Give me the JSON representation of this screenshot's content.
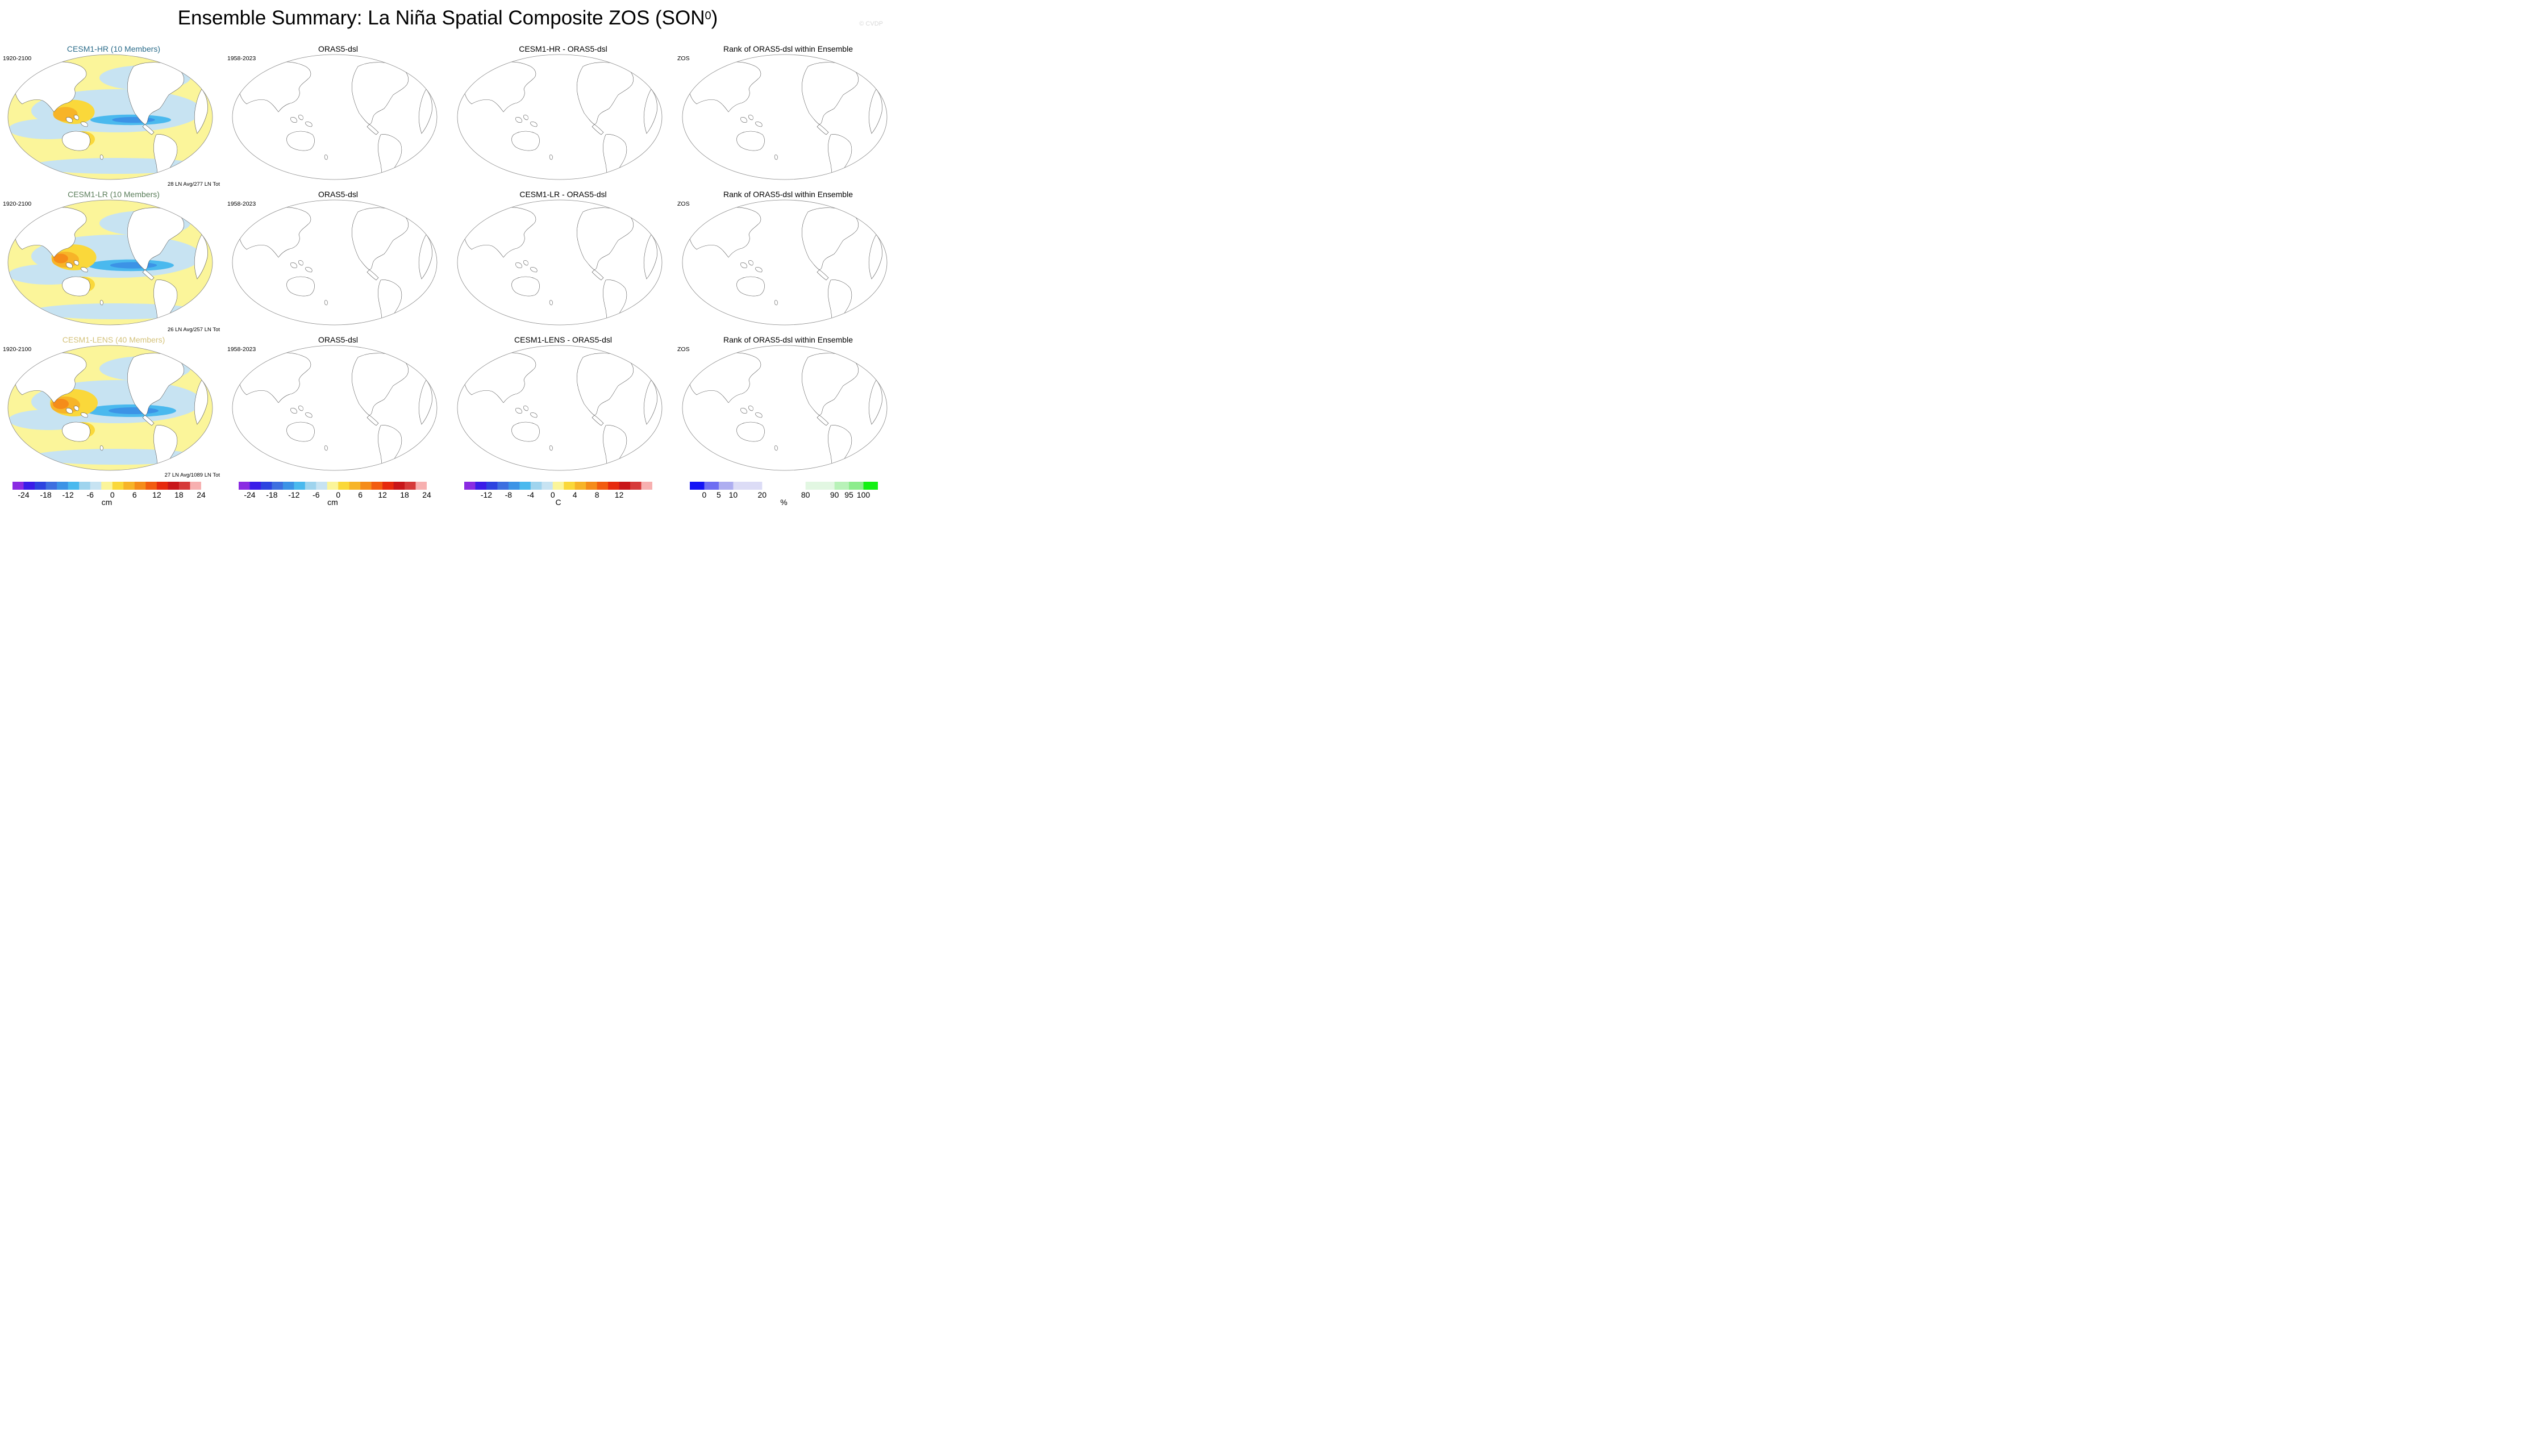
{
  "header": {
    "title": "Ensemble Summary: La Niña Spatial Composite ZOS (SON",
    "title_sup": "0",
    "title_close": ")",
    "copyright": "© CVDP"
  },
  "chart_data": [
    {
      "type": "heatmap",
      "row": 0,
      "col": 0,
      "title": "CESM1-HR (10 Members)",
      "title_color": "#2b6c8a",
      "left_label": "1920-2100",
      "note": "28 LN Avg/277 LN Tot",
      "filled": true,
      "la_nina_strength": 0.55,
      "colorbar": 0
    },
    {
      "type": "heatmap",
      "row": 0,
      "col": 1,
      "title": "ORAS5-dsl",
      "title_color": "#000000",
      "left_label": "1958-2023",
      "note": "",
      "filled": false,
      "colorbar": 1
    },
    {
      "type": "heatmap",
      "row": 0,
      "col": 2,
      "title": "CESM1-HR - ORAS5-dsl",
      "title_color": "#000000",
      "left_label": "",
      "note": "",
      "filled": false,
      "colorbar": 2
    },
    {
      "type": "heatmap",
      "row": 0,
      "col": 3,
      "title": "Rank of ORAS5-dsl within Ensemble",
      "title_color": "#000000",
      "left_label": "ZOS",
      "note": "",
      "filled": false,
      "colorbar": 3
    },
    {
      "type": "heatmap",
      "row": 1,
      "col": 0,
      "title": "CESM1-LR (10 Members)",
      "title_color": "#5a7d5a",
      "left_label": "1920-2100",
      "note": "26 LN Avg/257 LN Tot",
      "filled": true,
      "la_nina_strength": 0.8,
      "colorbar": 0
    },
    {
      "type": "heatmap",
      "row": 1,
      "col": 1,
      "title": "ORAS5-dsl",
      "title_color": "#000000",
      "left_label": "1958-2023",
      "note": "",
      "filled": false,
      "colorbar": 1
    },
    {
      "type": "heatmap",
      "row": 1,
      "col": 2,
      "title": "CESM1-LR - ORAS5-dsl",
      "title_color": "#000000",
      "left_label": "",
      "note": "",
      "filled": false,
      "colorbar": 2
    },
    {
      "type": "heatmap",
      "row": 1,
      "col": 3,
      "title": "Rank of ORAS5-dsl within Ensemble",
      "title_color": "#000000",
      "left_label": "ZOS",
      "note": "",
      "filled": false,
      "colorbar": 3
    },
    {
      "type": "heatmap",
      "row": 2,
      "col": 0,
      "title": "CESM1-LENS (40 Members)",
      "title_color": "#d4c27a",
      "left_label": "1920-2100",
      "note": "27 LN Avg/1089 LN Tot",
      "filled": true,
      "la_nina_strength": 1.0,
      "colorbar": 0
    },
    {
      "type": "heatmap",
      "row": 2,
      "col": 1,
      "title": "ORAS5-dsl",
      "title_color": "#000000",
      "left_label": "1958-2023",
      "note": "",
      "filled": false,
      "colorbar": 1
    },
    {
      "type": "heatmap",
      "row": 2,
      "col": 2,
      "title": "CESM1-LENS - ORAS5-dsl",
      "title_color": "#000000",
      "left_label": "",
      "note": "",
      "filled": false,
      "colorbar": 2
    },
    {
      "type": "heatmap",
      "row": 2,
      "col": 3,
      "title": "Rank of ORAS5-dsl within Ensemble",
      "title_color": "#000000",
      "left_label": "ZOS",
      "note": "",
      "filled": false,
      "colorbar": 3
    }
  ],
  "colorbars": [
    {
      "unit": "cm",
      "colors": [
        "#8a2be2",
        "#3a1de8",
        "#2c44e0",
        "#3d6fe0",
        "#3c93e6",
        "#4ab9ee",
        "#9fd4ee",
        "#c7e3f2",
        "#fbf59a",
        "#fad83a",
        "#f7b428",
        "#f58c1a",
        "#f25c10",
        "#e62a0e",
        "#c8161a",
        "#d63a3a",
        "#f7b0b0"
      ],
      "ticks": [
        "-24",
        "-18",
        "-12",
        "-6",
        "0",
        "6",
        "12",
        "18",
        "24"
      ],
      "tick_bounds": [
        1,
        3,
        5,
        7,
        9,
        11,
        13,
        15,
        17
      ]
    },
    {
      "unit": "cm",
      "colors": [
        "#8a2be2",
        "#3a1de8",
        "#2c44e0",
        "#3d6fe0",
        "#3c93e6",
        "#4ab9ee",
        "#9fd4ee",
        "#c7e3f2",
        "#fbf59a",
        "#fad83a",
        "#f7b428",
        "#f58c1a",
        "#f25c10",
        "#e62a0e",
        "#c8161a",
        "#d63a3a",
        "#f7b0b0"
      ],
      "ticks": [
        "-24",
        "-18",
        "-12",
        "-6",
        "0",
        "6",
        "12",
        "18",
        "24"
      ],
      "tick_bounds": [
        1,
        3,
        5,
        7,
        9,
        11,
        13,
        15,
        17
      ]
    },
    {
      "unit": "C",
      "colors": [
        "#8a2be2",
        "#3a1de8",
        "#2c44e0",
        "#3d6fe0",
        "#3c93e6",
        "#4ab9ee",
        "#9fd4ee",
        "#c7e3f2",
        "#fbf59a",
        "#fad83a",
        "#f7b428",
        "#f58c1a",
        "#f25c10",
        "#e62a0e",
        "#c8161a",
        "#d63a3a",
        "#f7b0b0"
      ],
      "ticks": [
        "-12",
        "-8",
        "-4",
        "0",
        "4",
        "8",
        "12"
      ],
      "tick_bounds": [
        2,
        4,
        6,
        8,
        10,
        12,
        14
      ]
    },
    {
      "unit": "%",
      "colors": [
        "#1414f5",
        "#6e6ef2",
        "#aeaef0",
        "#dcdcf6",
        "#dcdcf6",
        "#ffffff",
        "#ffffff",
        "#ffffff",
        "#e2f7e2",
        "#e2f7e2",
        "#b8f2b8",
        "#8cec8c",
        "#14f014"
      ],
      "ticks": [
        "0",
        "5",
        "10",
        "20",
        "80",
        "90",
        "95",
        "100"
      ],
      "tick_bounds": [
        1,
        2,
        3,
        5,
        8,
        10,
        11,
        12
      ]
    }
  ]
}
